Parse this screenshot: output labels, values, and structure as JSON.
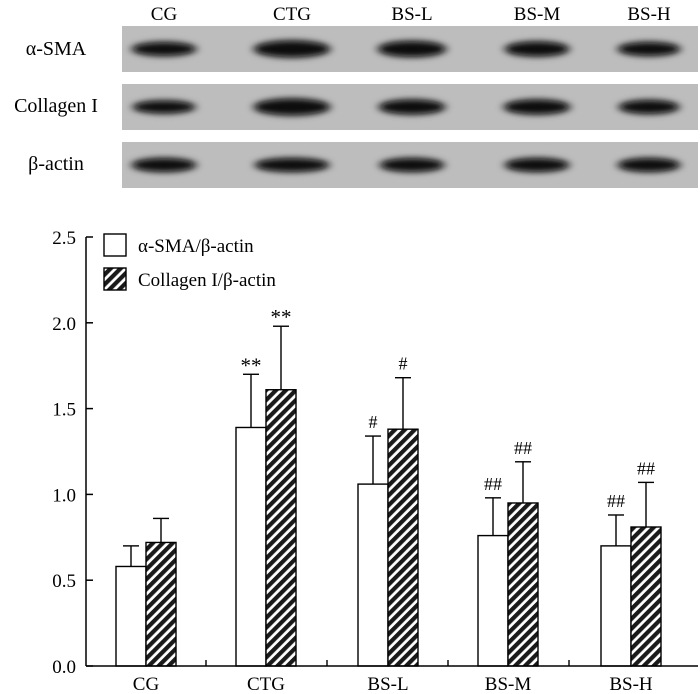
{
  "blot": {
    "lanes": [
      "CG",
      "CTG",
      "BS-L",
      "BS-M",
      "BS-H"
    ],
    "rows": [
      "α-SMA",
      "Collagen I",
      "β-actin"
    ]
  },
  "chart_data": {
    "type": "bar",
    "categories": [
      "CG",
      "CTG",
      "BS-L",
      "BS-M",
      "BS-H"
    ],
    "ylim": [
      0,
      2.5
    ],
    "yticks": [
      "0.0",
      "0.5",
      "1.0",
      "1.5",
      "2.0",
      "2.5"
    ],
    "legend_position": "top-left",
    "grid": false,
    "series": [
      {
        "name": "α-SMA/β-actin",
        "fill": "white",
        "values": [
          0.58,
          1.39,
          1.06,
          0.76,
          0.7
        ],
        "errors": [
          0.12,
          0.31,
          0.28,
          0.22,
          0.18
        ],
        "annotations": [
          "",
          "**",
          "#",
          "##",
          "##"
        ]
      },
      {
        "name": "Collagen I/β-actin",
        "fill": "hatched",
        "values": [
          0.72,
          1.61,
          1.38,
          0.95,
          0.81
        ],
        "errors": [
          0.14,
          0.37,
          0.3,
          0.24,
          0.26
        ],
        "annotations": [
          "",
          "**",
          "#",
          "##",
          "##"
        ]
      }
    ]
  }
}
